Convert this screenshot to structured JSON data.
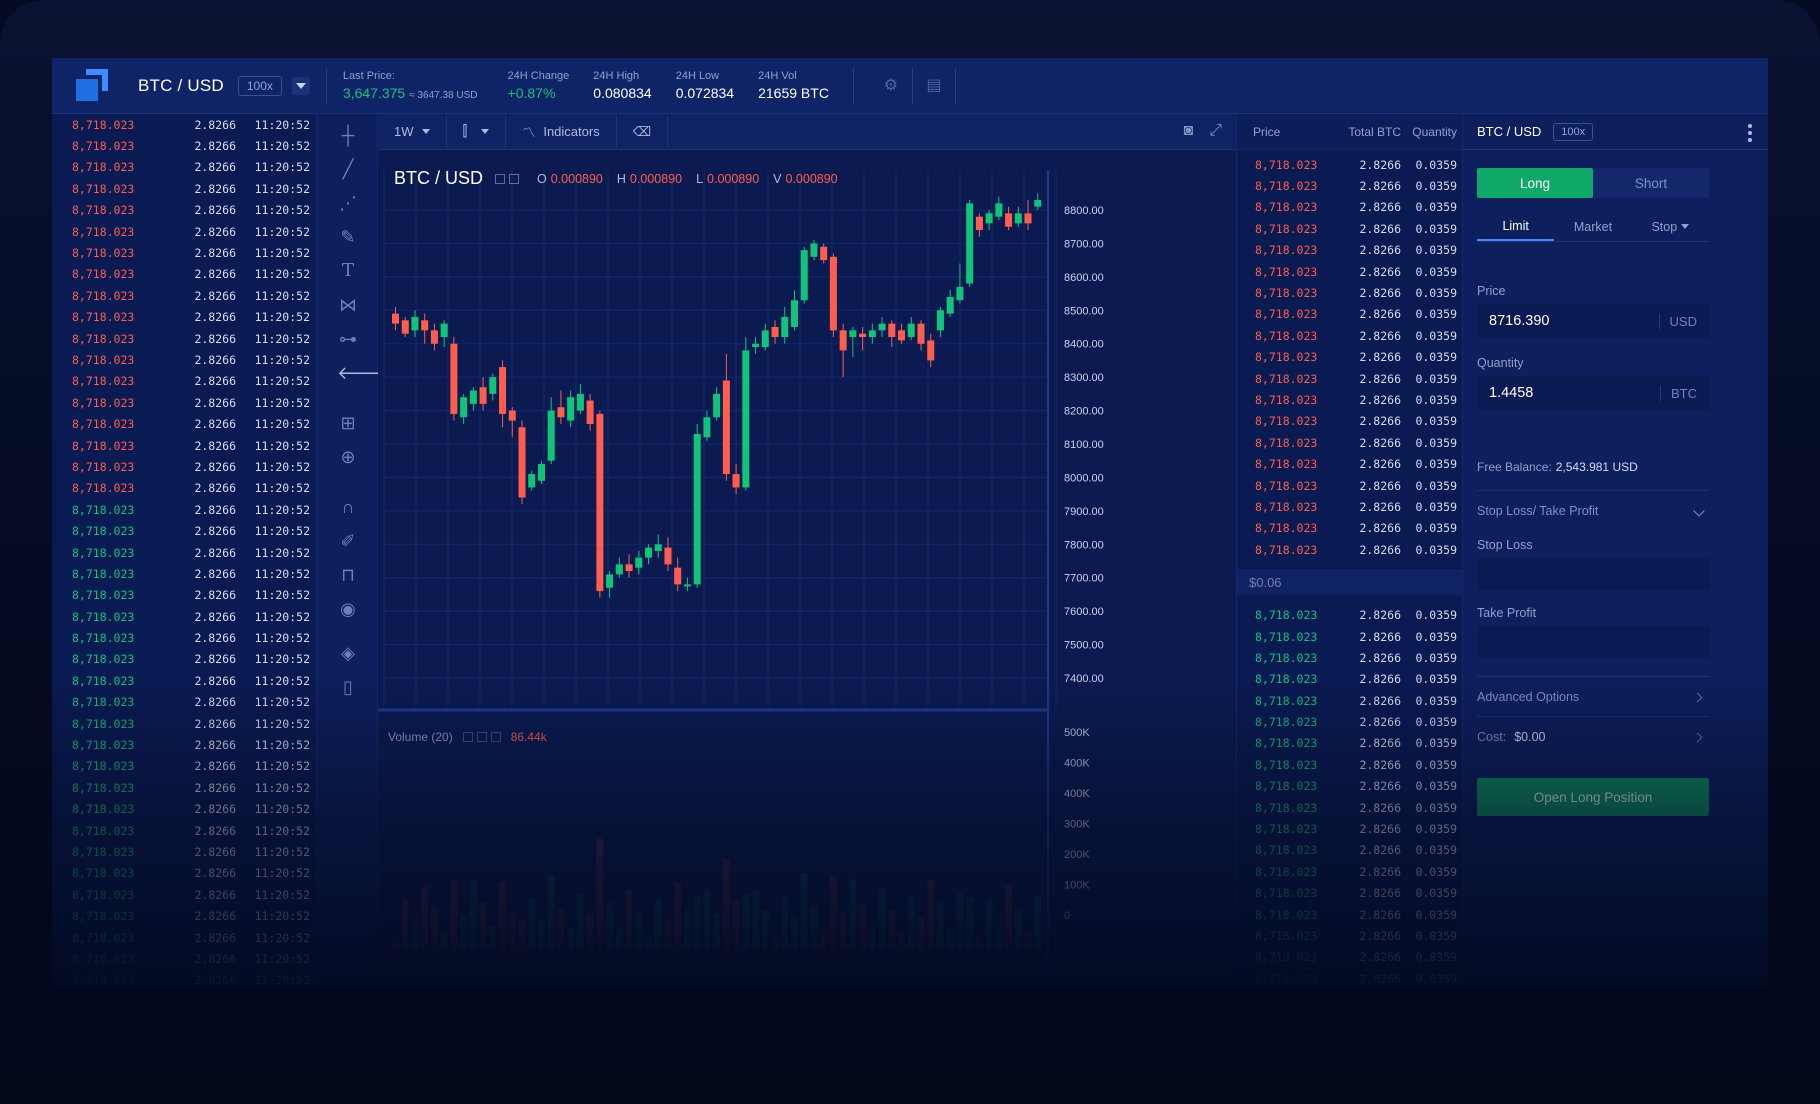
{
  "header": {
    "pair": "BTC / USD",
    "leverage": "100x",
    "last_price_label": "Last Price:",
    "last_price": "3,647.375",
    "last_price_sub": "≈ 3647.38 USD",
    "change_label": "24H Change",
    "change": "+0.87%",
    "high_label": "24H High",
    "high": "0.080834",
    "low_label": "24H Low",
    "low": "0.072834",
    "vol_label": "24H Vol",
    "vol": "21659 BTC",
    "icons": [
      "gear-icon",
      "clipboard-icon"
    ]
  },
  "trades": {
    "red_count": 18,
    "green_count": 28,
    "price": "8,718.023",
    "qty": "2.8266",
    "time": "11:20:52"
  },
  "chart_toolbar": {
    "interval": "1W",
    "indicators_label": "Indicators"
  },
  "legend": {
    "symbol": "BTC / USD",
    "o_label": "O",
    "o": "0.000890",
    "h_label": "H",
    "h": "0.000890",
    "l_label": "L",
    "l": "0.000890",
    "v_label": "V",
    "v": "0.000890"
  },
  "volume": {
    "label": "Volume (20)",
    "value": "86.44k"
  },
  "chart_data": {
    "type": "candlestick",
    "price_ticks": [
      "8800.00",
      "8700.00",
      "8600.00",
      "8500.00",
      "8400.00",
      "8300.00",
      "8200.00",
      "8100.00",
      "8000.00",
      "7900.00",
      "7800.00",
      "7700.00",
      "7600.00",
      "7500.00",
      "7400.00"
    ],
    "volume_ticks": [
      "500K",
      "400K",
      "400K",
      "300K",
      "200K",
      "100K",
      "0"
    ],
    "ylim": [
      7400,
      8800
    ],
    "candles": [
      [
        8490,
        8460,
        8510,
        8440
      ],
      [
        8470,
        8430,
        8480,
        8420
      ],
      [
        8440,
        8480,
        8500,
        8420
      ],
      [
        8470,
        8440,
        8490,
        8400
      ],
      [
        8440,
        8400,
        8460,
        8380
      ],
      [
        8420,
        8460,
        8470,
        8390
      ],
      [
        8400,
        8190,
        8420,
        8170
      ],
      [
        8180,
        8240,
        8250,
        8160
      ],
      [
        8220,
        8260,
        8270,
        8200
      ],
      [
        8270,
        8220,
        8300,
        8200
      ],
      [
        8250,
        8300,
        8310,
        8230
      ],
      [
        8330,
        8190,
        8350,
        8150
      ],
      [
        8200,
        8170,
        8210,
        8120
      ],
      [
        8150,
        7940,
        8170,
        7920
      ],
      [
        7970,
        8010,
        8020,
        7960
      ],
      [
        7990,
        8040,
        8050,
        7980
      ],
      [
        8050,
        8200,
        8240,
        8040
      ],
      [
        8210,
        8180,
        8260,
        8160
      ],
      [
        8170,
        8240,
        8260,
        8150
      ],
      [
        8200,
        8250,
        8280,
        8190
      ],
      [
        8230,
        8160,
        8250,
        8140
      ],
      [
        8190,
        7660,
        8200,
        7640
      ],
      [
        7670,
        7710,
        7720,
        7640
      ],
      [
        7710,
        7740,
        7760,
        7700
      ],
      [
        7740,
        7720,
        7770,
        7700
      ],
      [
        7730,
        7760,
        7780,
        7710
      ],
      [
        7760,
        7790,
        7800,
        7740
      ],
      [
        7780,
        7800,
        7830,
        7760
      ],
      [
        7790,
        7740,
        7820,
        7720
      ],
      [
        7730,
        7680,
        7760,
        7660
      ],
      [
        7680,
        7680,
        7700,
        7660
      ],
      [
        7680,
        8130,
        8160,
        7670
      ],
      [
        8120,
        8180,
        8200,
        8110
      ],
      [
        8180,
        8250,
        8270,
        8170
      ],
      [
        8290,
        8010,
        8370,
        7990
      ],
      [
        8010,
        7970,
        8040,
        7950
      ],
      [
        7970,
        8380,
        8420,
        7960
      ],
      [
        8390,
        8400,
        8420,
        8370
      ],
      [
        8390,
        8440,
        8460,
        8380
      ],
      [
        8450,
        8420,
        8470,
        8400
      ],
      [
        8420,
        8480,
        8510,
        8400
      ],
      [
        8450,
        8530,
        8560,
        8440
      ],
      [
        8530,
        8680,
        8690,
        8520
      ],
      [
        8660,
        8700,
        8710,
        8650
      ],
      [
        8690,
        8650,
        8700,
        8640
      ],
      [
        8660,
        8440,
        8670,
        8420
      ],
      [
        8440,
        8380,
        8460,
        8300
      ],
      [
        8420,
        8440,
        8450,
        8360
      ],
      [
        8430,
        8420,
        8450,
        8380
      ],
      [
        8420,
        8440,
        8460,
        8400
      ],
      [
        8440,
        8460,
        8480,
        8420
      ],
      [
        8460,
        8420,
        8470,
        8390
      ],
      [
        8440,
        8410,
        8460,
        8400
      ],
      [
        8420,
        8460,
        8480,
        8410
      ],
      [
        8460,
        8400,
        8470,
        8380
      ],
      [
        8410,
        8350,
        8430,
        8330
      ],
      [
        8440,
        8500,
        8510,
        8420
      ],
      [
        8490,
        8540,
        8560,
        8480
      ],
      [
        8530,
        8570,
        8640,
        8520
      ],
      [
        8580,
        8820,
        8830,
        8570
      ],
      [
        8780,
        8740,
        8790,
        8720
      ],
      [
        8760,
        8790,
        8800,
        8740
      ],
      [
        8780,
        8820,
        8840,
        8770
      ],
      [
        8790,
        8750,
        8810,
        8740
      ],
      [
        8760,
        8790,
        8810,
        8750
      ],
      [
        8790,
        8760,
        8830,
        8740
      ],
      [
        8810,
        8830,
        8850,
        8800
      ]
    ]
  },
  "book": {
    "headers": [
      "Price",
      "Total BTC",
      "Quantity"
    ],
    "spread": "$0.06",
    "ask_count": 19,
    "bid_count": 19,
    "price": "8,718.023",
    "total": "2.8266",
    "qty": "0.0359"
  },
  "panel": {
    "title": "BTC / USD",
    "leverage": "100x",
    "long": "Long",
    "short": "Short",
    "tabs": [
      "Limit",
      "Market",
      "Stop"
    ],
    "price_label": "Price",
    "price_value": "8716.390",
    "price_unit": "USD",
    "quantity_label": "Quantity",
    "quantity_value": "1.4458",
    "quantity_unit": "BTC",
    "free_balance_label": "Free Balance:",
    "free_balance": "2,543.981 USD",
    "sltp_label": "Stop Loss/ Take Profit",
    "stop_loss_label": "Stop Loss",
    "take_profit_label": "Take Profit",
    "advanced_label": "Advanced Options",
    "cost_label": "Cost:",
    "cost_value": "$0.00",
    "open_button": "Open Long Position"
  },
  "colors": {
    "up": "#12c47a",
    "down": "#ff5d4d",
    "accent": "#10a96a"
  }
}
